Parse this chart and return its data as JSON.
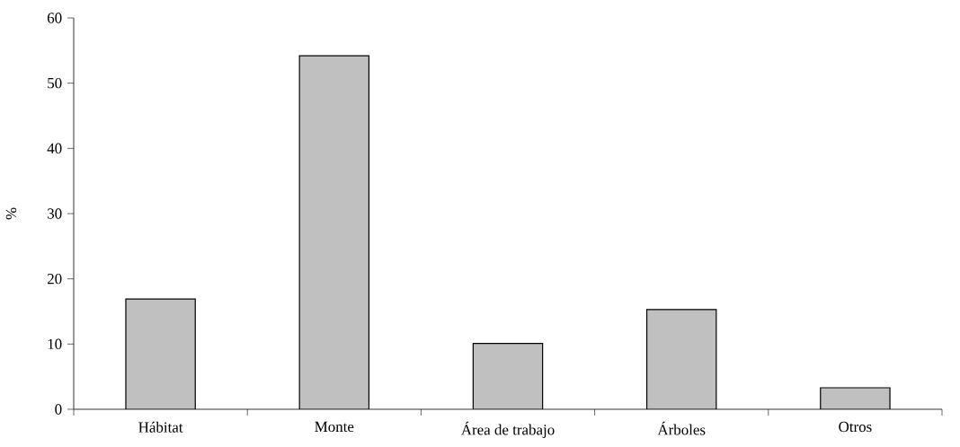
{
  "chart_data": {
    "type": "bar",
    "ylabel": "%",
    "categories": [
      "Hábitat",
      "Monte",
      "Área de trabajo",
      "Árboles",
      "Otros"
    ],
    "values": [
      16.9,
      54.2,
      10.1,
      15.3,
      3.3
    ],
    "color": "#c0c0c0",
    "ylim": [
      0,
      60
    ],
    "yticks": [
      0,
      10,
      20,
      30,
      40,
      50,
      60
    ],
    "grid": false
  }
}
